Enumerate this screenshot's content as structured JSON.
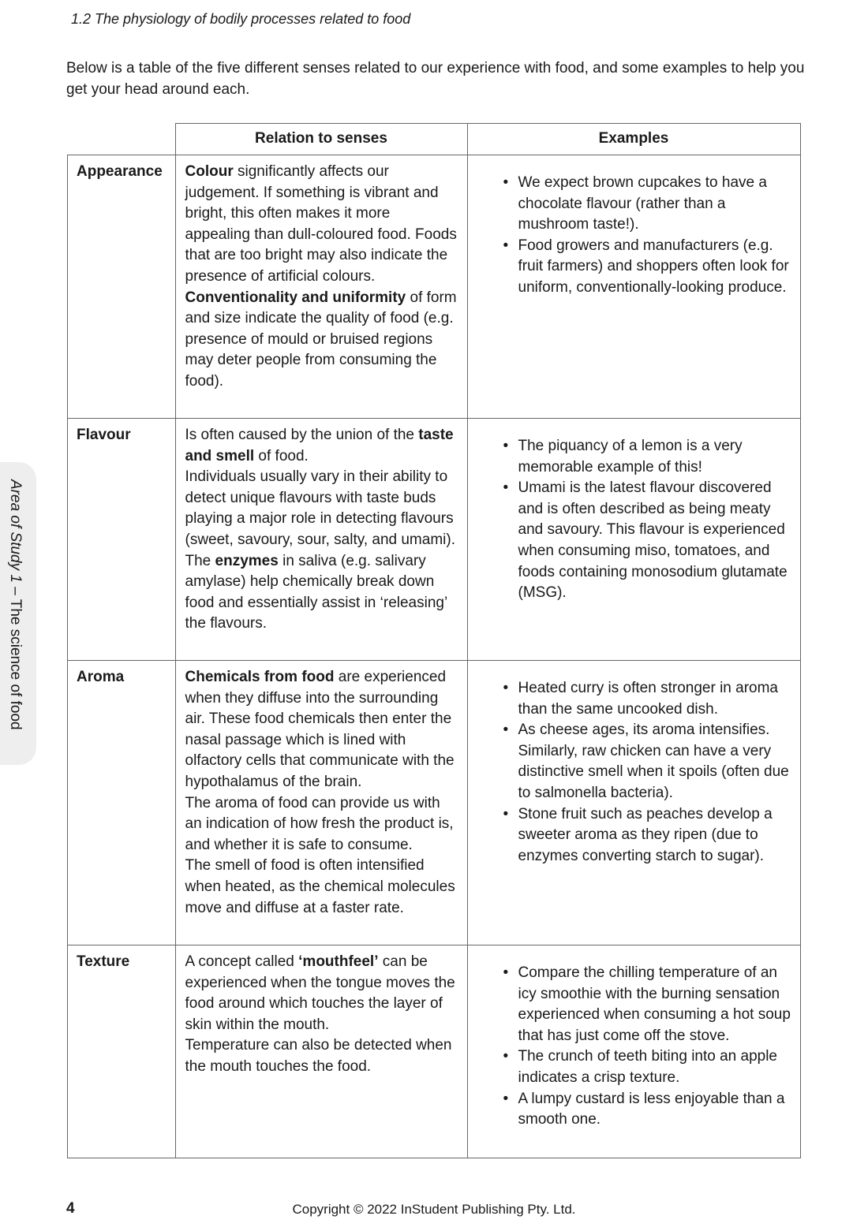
{
  "running_head": "1.2 The physiology of bodily processes related to food",
  "intro": "Below is a table of the five different senses related to our experience with food, and some examples to help you get your head around each.",
  "side_tab": {
    "part1": "Area of Study 1",
    "part2": " – The science of food"
  },
  "table": {
    "headers": [
      "",
      "Relation to senses",
      "Examples"
    ],
    "rows": [
      {
        "sense": "Appearance",
        "heights": 334,
        "relation": [
          [
            {
              "t": "Colour",
              "b": true
            },
            {
              "t": " significantly affects our judgement. If something is vibrant and bright, this often makes it more appealing than dull-coloured food. Foods that are too bright may also indicate the presence of artificial colours."
            }
          ],
          [
            {
              "t": "Conventionality and uniformity",
              "b": true
            },
            {
              "t": " of form and size indicate the quality of food (e.g. presence of mould or bruised regions may deter people from consuming the food)."
            }
          ]
        ],
        "examples": [
          "We expect brown cupcakes to have a chocolate flavour (rather than a mushroom taste!).",
          "Food growers and manufacturers (e.g. fruit farmers) and shoppers often look for uniform, conventionally-looking produce."
        ]
      },
      {
        "sense": "Flavour",
        "relation": [
          [
            {
              "t": "Is often caused by the union of the "
            },
            {
              "t": "taste and smell",
              "b": true
            },
            {
              "t": " of food."
            }
          ],
          [
            {
              "t": "Individuals usually vary in their ability to detect unique flavours with taste buds playing a major role in detecting flavours (sweet, savoury, sour, salty, and umami)."
            }
          ],
          [
            {
              "t": "The "
            },
            {
              "t": "enzymes",
              "b": true
            },
            {
              "t": " in saliva (e.g. salivary amylase) help chemically break down food and essentially assist in ‘releasing’ the flavours."
            }
          ]
        ],
        "examples": [
          "The piquancy of a lemon is a very memorable example of this!",
          "Umami is the latest flavour discovered and is often described as being meaty and savoury. This flavour is experienced when consuming miso, tomatoes, and foods containing monosodium glutamate (MSG)."
        ]
      },
      {
        "sense": "Aroma",
        "relation": [
          [
            {
              "t": "Chemicals from food",
              "b": true
            },
            {
              "t": " are experienced when they diffuse into the surrounding air. These food chemicals then enter the nasal passage which is lined with olfactory cells that communicate with the hypothalamus of the brain."
            }
          ],
          [
            {
              "t": "The aroma of food can provide us with an indication of how fresh the product is, and whether it is safe to consume."
            }
          ],
          [
            {
              "t": "The smell of food is often intensified when heated, as the chemical molecules move and diffuse at a faster rate."
            }
          ]
        ],
        "examples": [
          "Heated curry is often stronger in aroma than the same uncooked dish.",
          "As cheese ages, its aroma intensifies. Similarly, raw chicken can have a very distinctive smell when it spoils (often due to salmonella bacteria).",
          "Stone fruit such as peaches develop a sweeter aroma as they ripen (due to enzymes converting starch to sugar)."
        ]
      },
      {
        "sense": "Texture",
        "relation": [
          [
            {
              "t": "A concept called "
            },
            {
              "t": "‘mouthfeel’",
              "b": true
            },
            {
              "t": " can be experienced when the tongue moves the food around which touches the layer of skin within the mouth."
            }
          ],
          [
            {
              "t": "Temperature can also be detected when the mouth touches the food."
            }
          ]
        ],
        "examples": [
          "Compare the chilling temperature of an icy smoothie with the burning sensation experienced when consuming a hot soup that has just come off the stove.",
          "The crunch of teeth biting into an apple indicates a crisp texture.",
          "A lumpy custard is less enjoyable than a smooth one."
        ]
      }
    ]
  },
  "footer": {
    "page_number": "4",
    "copyright": "Copyright © 2022 InStudent Publishing Pty. Ltd."
  }
}
